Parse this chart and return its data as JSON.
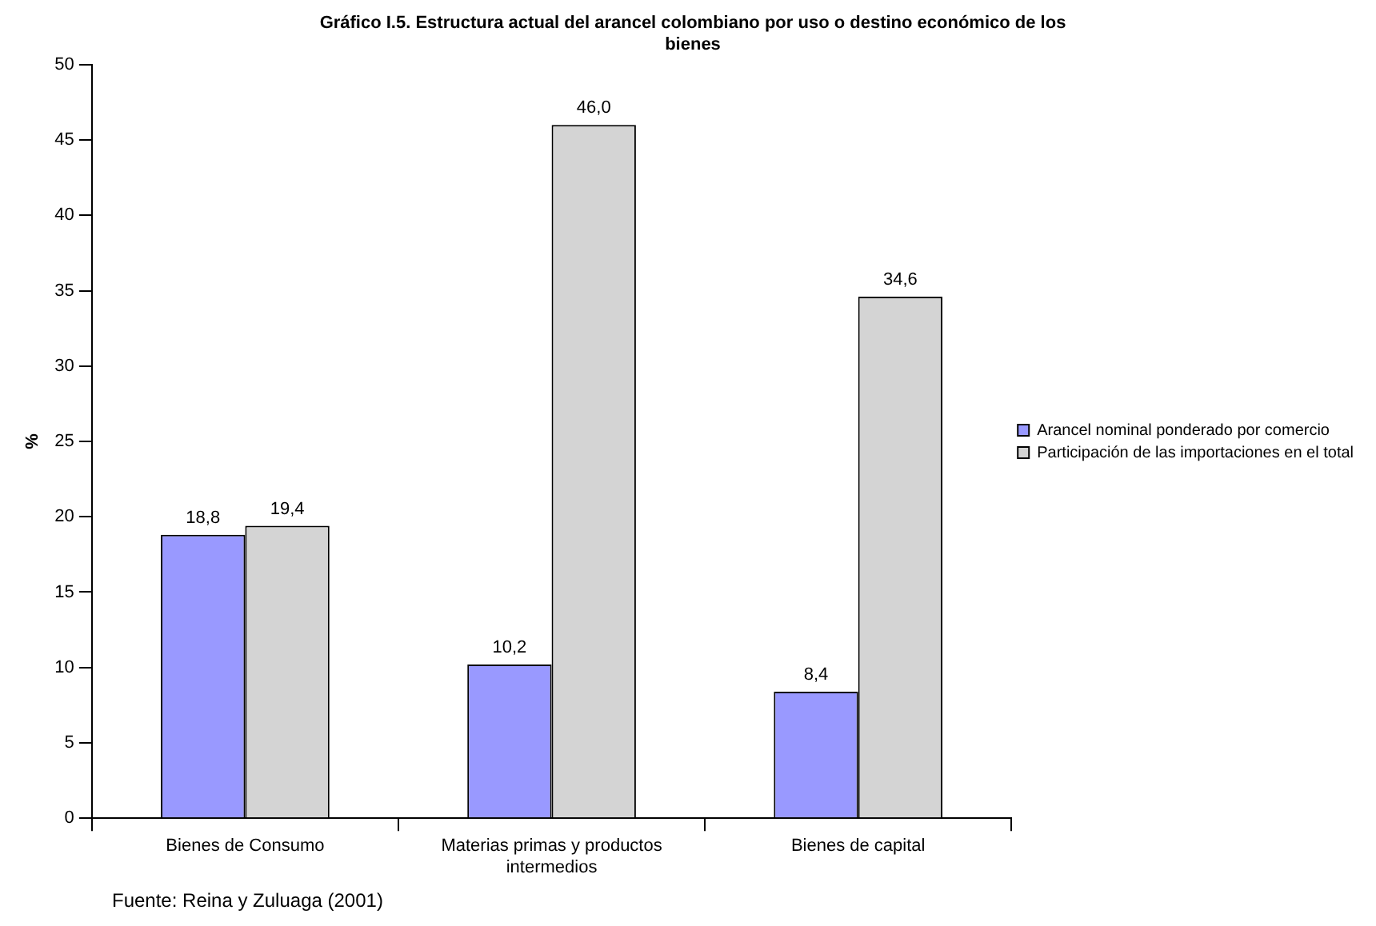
{
  "chart_data": {
    "type": "bar",
    "title": "Gráfico I.5. Estructura actual del arancel colombiano por uso o destino económico de los bienes",
    "categories": [
      "Bienes de Consumo",
      "Materias primas y productos intermedios",
      "Bienes de capital"
    ],
    "series": [
      {
        "name": "Arancel nominal ponderado por comercio",
        "color": "#9999ff",
        "values": [
          18.8,
          10.2,
          8.4
        ],
        "value_labels": [
          "18,8",
          "10,2",
          "8,4"
        ]
      },
      {
        "name": "Participación de las importaciones en el total",
        "color": "#d4d4d4",
        "values": [
          19.4,
          46.0,
          34.6
        ],
        "value_labels": [
          "19,4",
          "46,0",
          "34,6"
        ]
      }
    ],
    "ylabel": "%",
    "ylim": [
      0,
      50
    ],
    "yticks": [
      0,
      5,
      10,
      15,
      20,
      25,
      30,
      35,
      40,
      45,
      50
    ],
    "grid": false,
    "legend": "right",
    "annotations": [
      "Fuente: Reina y Zuluaga (2001)"
    ]
  }
}
